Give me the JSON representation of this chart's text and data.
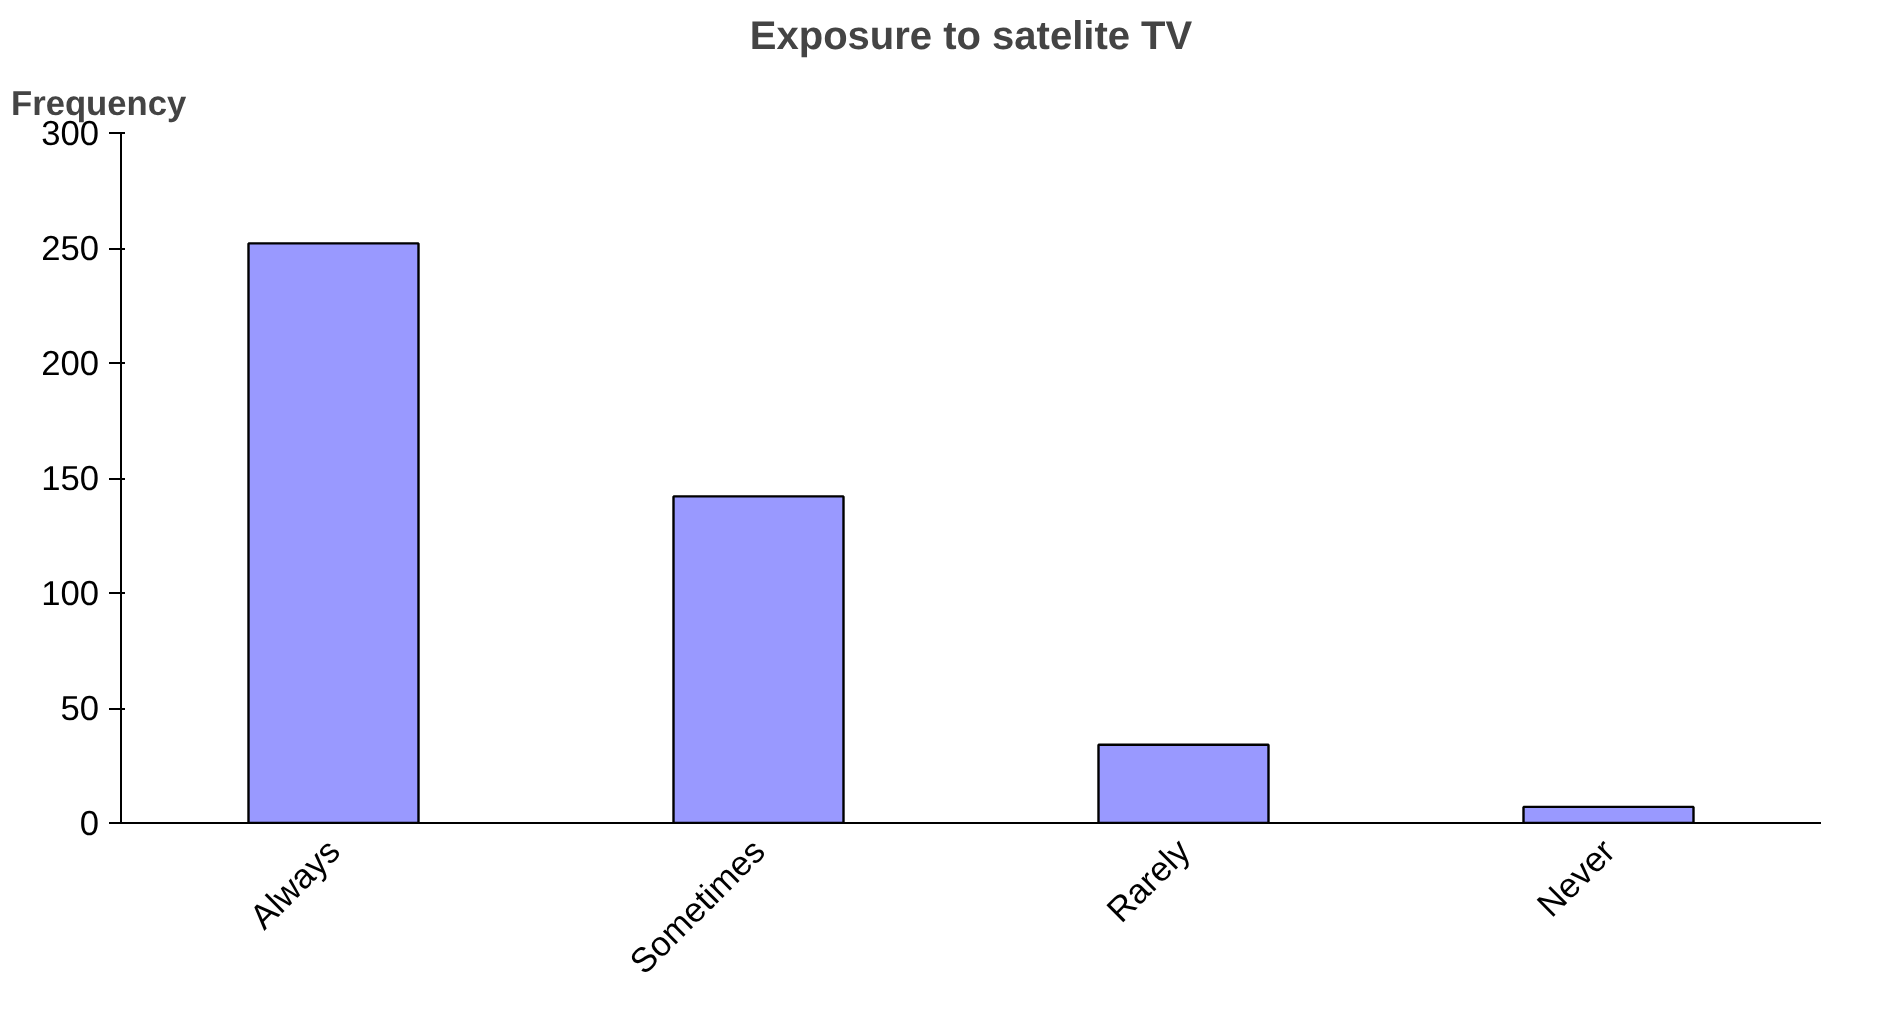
{
  "chart_data": {
    "type": "bar",
    "title": "Exposure to satelite TV",
    "ylabel": "Frequency",
    "categories": [
      "Always",
      "Sometimes",
      "Rarely",
      "Never"
    ],
    "values": [
      252,
      142,
      34,
      7
    ],
    "color": "#9999ff",
    "ylim": [
      0,
      300
    ],
    "yticks": [
      0,
      50,
      100,
      150,
      200,
      250,
      300
    ],
    "grid": false
  }
}
